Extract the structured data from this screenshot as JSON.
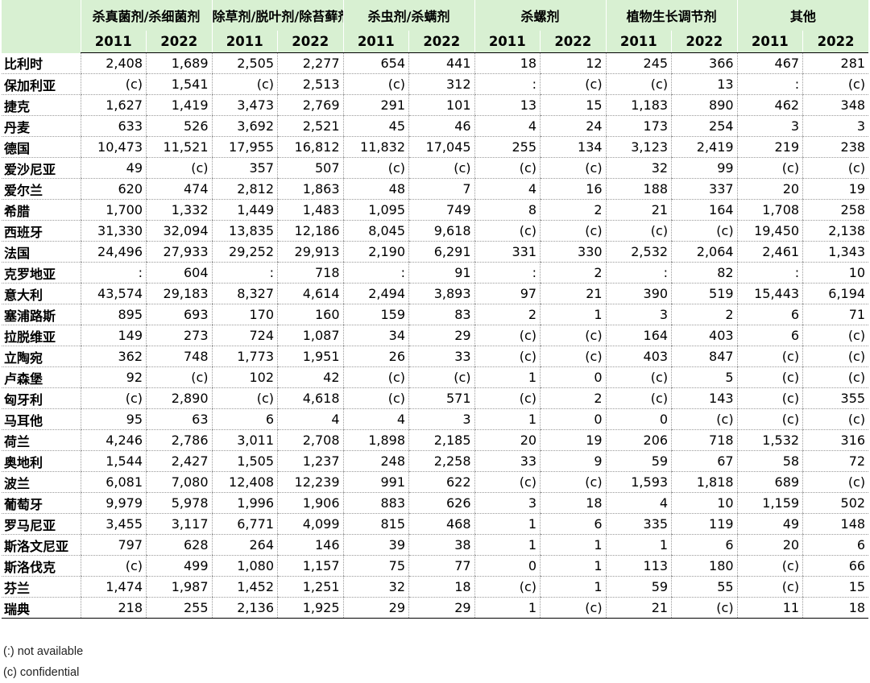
{
  "header": {
    "groups": [
      "杀真菌剂/杀细菌剂",
      "除草剂/脱叶剂/除苔藓剂",
      "杀虫剂/杀螨剂",
      "杀螺剂",
      "植物生长调节剂",
      "其他"
    ],
    "years": [
      "2011",
      "2022"
    ]
  },
  "rows": [
    {
      "country": "比利时",
      "values": [
        "2,408",
        "1,689",
        "2,505",
        "2,277",
        "654",
        "441",
        "18",
        "12",
        "245",
        "366",
        "467",
        "281"
      ]
    },
    {
      "country": "保加利亚",
      "values": [
        "(c)",
        "1,541",
        "(c)",
        "2,513",
        "(c)",
        "312",
        ":",
        "(c)",
        "(c)",
        "13",
        ":",
        "(c)"
      ]
    },
    {
      "country": "捷克",
      "values": [
        "1,627",
        "1,419",
        "3,473",
        "2,769",
        "291",
        "101",
        "13",
        "15",
        "1,183",
        "890",
        "462",
        "348"
      ]
    },
    {
      "country": "丹麦",
      "values": [
        "633",
        "526",
        "3,692",
        "2,521",
        "45",
        "46",
        "4",
        "24",
        "173",
        "254",
        "3",
        "3"
      ]
    },
    {
      "country": "德国",
      "values": [
        "10,473",
        "11,521",
        "17,955",
        "16,812",
        "11,832",
        "17,045",
        "255",
        "134",
        "3,123",
        "2,419",
        "219",
        "238"
      ]
    },
    {
      "country": "爱沙尼亚",
      "values": [
        "49",
        "(c)",
        "357",
        "507",
        "(c)",
        "(c)",
        "(c)",
        "(c)",
        "32",
        "99",
        "(c)",
        "(c)"
      ]
    },
    {
      "country": "爱尔兰",
      "values": [
        "620",
        "474",
        "2,812",
        "1,863",
        "48",
        "7",
        "4",
        "16",
        "188",
        "337",
        "20",
        "19"
      ]
    },
    {
      "country": "希腊",
      "values": [
        "1,700",
        "1,332",
        "1,449",
        "1,483",
        "1,095",
        "749",
        "8",
        "2",
        "21",
        "164",
        "1,708",
        "258"
      ]
    },
    {
      "country": "西班牙",
      "values": [
        "31,330",
        "32,094",
        "13,835",
        "12,186",
        "8,045",
        "9,618",
        "(c)",
        "(c)",
        "(c)",
        "(c)",
        "19,450",
        "2,138"
      ]
    },
    {
      "country": "法国",
      "values": [
        "24,496",
        "27,933",
        "29,252",
        "29,913",
        "2,190",
        "6,291",
        "331",
        "330",
        "2,532",
        "2,064",
        "2,461",
        "1,343"
      ]
    },
    {
      "country": "克罗地亚",
      "values": [
        ":",
        "604",
        ":",
        "718",
        ":",
        "91",
        ":",
        "2",
        ":",
        "82",
        ":",
        "10"
      ]
    },
    {
      "country": "意大利",
      "values": [
        "43,574",
        "29,183",
        "8,327",
        "4,614",
        "2,494",
        "3,893",
        "97",
        "21",
        "390",
        "519",
        "15,443",
        "6,194"
      ]
    },
    {
      "country": "塞浦路斯",
      "values": [
        "895",
        "693",
        "170",
        "160",
        "159",
        "83",
        "2",
        "1",
        "3",
        "2",
        "6",
        "71"
      ]
    },
    {
      "country": "拉脱维亚",
      "values": [
        "149",
        "273",
        "724",
        "1,087",
        "34",
        "29",
        "(c)",
        "(c)",
        "164",
        "403",
        "6",
        "(c)"
      ]
    },
    {
      "country": "立陶宛",
      "values": [
        "362",
        "748",
        "1,773",
        "1,951",
        "26",
        "33",
        "(c)",
        "(c)",
        "403",
        "847",
        "(c)",
        "(c)"
      ]
    },
    {
      "country": "卢森堡",
      "values": [
        "92",
        "(c)",
        "102",
        "42",
        "(c)",
        "(c)",
        "1",
        "0",
        "(c)",
        "5",
        "(c)",
        "(c)"
      ]
    },
    {
      "country": "匈牙利",
      "values": [
        "(c)",
        "2,890",
        "(c)",
        "4,618",
        "(c)",
        "571",
        "(c)",
        "2",
        "(c)",
        "143",
        "(c)",
        "355"
      ]
    },
    {
      "country": "马耳他",
      "values": [
        "95",
        "63",
        "6",
        "4",
        "4",
        "3",
        "1",
        "0",
        "0",
        "(c)",
        "(c)",
        "(c)"
      ]
    },
    {
      "country": "荷兰",
      "values": [
        "4,246",
        "2,786",
        "3,011",
        "2,708",
        "1,898",
        "2,185",
        "20",
        "19",
        "206",
        "718",
        "1,532",
        "316"
      ]
    },
    {
      "country": "奥地利",
      "values": [
        "1,544",
        "2,427",
        "1,505",
        "1,237",
        "248",
        "2,258",
        "33",
        "9",
        "59",
        "67",
        "58",
        "72"
      ]
    },
    {
      "country": "波兰",
      "values": [
        "6,081",
        "7,080",
        "12,408",
        "12,239",
        "991",
        "622",
        "(c)",
        "(c)",
        "1,593",
        "1,818",
        "689",
        "(c)"
      ]
    },
    {
      "country": "葡萄牙",
      "values": [
        "9,979",
        "5,978",
        "1,996",
        "1,906",
        "883",
        "626",
        "3",
        "18",
        "4",
        "10",
        "1,159",
        "502"
      ]
    },
    {
      "country": "罗马尼亚",
      "values": [
        "3,455",
        "3,117",
        "6,771",
        "4,099",
        "815",
        "468",
        "1",
        "6",
        "335",
        "119",
        "49",
        "148"
      ]
    },
    {
      "country": "斯洛文尼亚",
      "values": [
        "797",
        "628",
        "264",
        "146",
        "39",
        "38",
        "1",
        "1",
        "1",
        "6",
        "20",
        "6"
      ]
    },
    {
      "country": "斯洛伐克",
      "values": [
        "(c)",
        "499",
        "1,080",
        "1,157",
        "75",
        "77",
        "0",
        "1",
        "113",
        "180",
        "(c)",
        "66"
      ]
    },
    {
      "country": "芬兰",
      "values": [
        "1,474",
        "1,987",
        "1,452",
        "1,251",
        "32",
        "18",
        "(c)",
        "1",
        "59",
        "55",
        "(c)",
        "15"
      ]
    },
    {
      "country": "瑞典",
      "values": [
        "218",
        "255",
        "2,136",
        "1,925",
        "29",
        "29",
        "1",
        "(c)",
        "21",
        "(c)",
        "11",
        "18"
      ]
    }
  ],
  "notes": [
    "(:) not available",
    "(c) confidential"
  ],
  "colors": {
    "header_bg": "#d8f0d2",
    "grid_line": "#9a9a9a"
  }
}
